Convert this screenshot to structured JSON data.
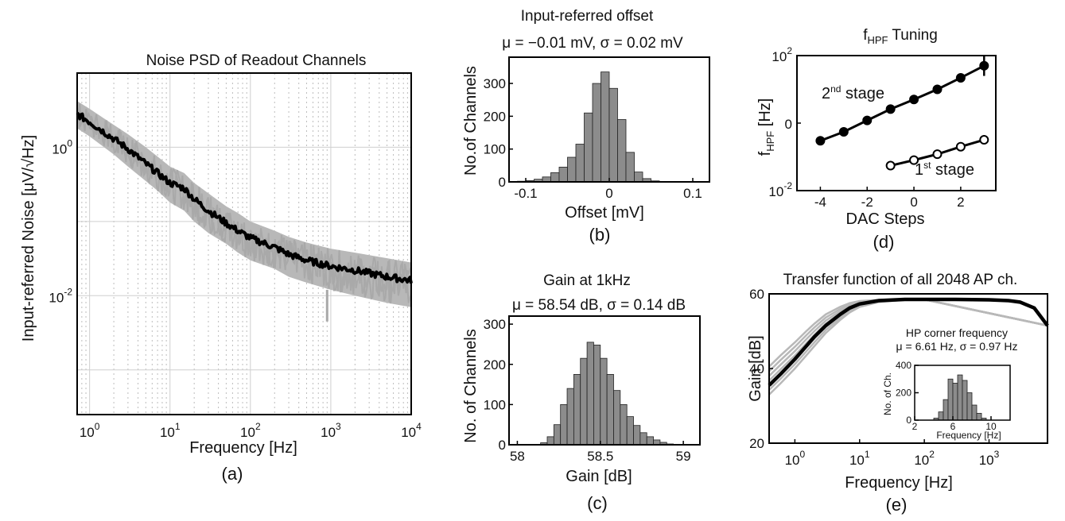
{
  "panels": {
    "a": {
      "caption": "(a)"
    },
    "b": {
      "caption": "(b)",
      "stats": "μ = −0.01 mV, σ = 0.02 mV"
    },
    "c": {
      "caption": "(c)",
      "stats": "μ = 58.54 dB, σ = 0.14 dB"
    },
    "d": {
      "caption": "(d)"
    },
    "e": {
      "caption": "(e)"
    }
  },
  "chart_data": [
    {
      "id": "a",
      "type": "line",
      "title": "Noise PSD of Readout Channels",
      "xlabel": "Frequency [Hz]",
      "ylabel": "Input-referred Noise [μV/√Hz]",
      "xscale": "log",
      "yscale": "log",
      "xlim": [
        0.7,
        10000
      ],
      "ylim": [
        0.00025,
        10
      ],
      "x_ticks": [
        {
          "v": 1,
          "b": "10",
          "e": "0"
        },
        {
          "v": 10,
          "b": "10",
          "e": "1"
        },
        {
          "v": 100,
          "b": "10",
          "e": "2"
        },
        {
          "v": 1000,
          "b": "10",
          "e": "3"
        },
        {
          "v": 10000,
          "b": "10",
          "e": "4"
        }
      ],
      "y_ticks": [
        {
          "v": 1,
          "b": "10",
          "e": "0"
        },
        {
          "v": 0.01,
          "b": "10",
          "e": "-2"
        }
      ],
      "grid": true,
      "series": [
        {
          "role": "mean",
          "color": "#000000",
          "x": [
            0.7,
            1,
            2,
            3,
            5,
            7,
            10,
            15,
            20,
            30,
            50,
            70,
            100,
            200,
            300,
            500,
            1000,
            2000,
            5000,
            10000
          ],
          "y": [
            2.8,
            2.2,
            1.3,
            0.95,
            0.6,
            0.45,
            0.33,
            0.28,
            0.2,
            0.14,
            0.095,
            0.075,
            0.06,
            0.045,
            0.036,
            0.03,
            0.025,
            0.022,
            0.018,
            0.016
          ]
        },
        {
          "role": "envelope",
          "color": "#b8b8b8",
          "x": [
            0.7,
            1,
            2,
            3,
            5,
            7,
            10,
            15,
            20,
            30,
            50,
            70,
            100,
            200,
            300,
            500,
            1000,
            2000,
            5000,
            10000
          ],
          "upper": [
            4.2,
            3.3,
            2.0,
            1.5,
            1.0,
            0.75,
            0.55,
            0.45,
            0.33,
            0.24,
            0.16,
            0.13,
            0.1,
            0.075,
            0.062,
            0.052,
            0.043,
            0.038,
            0.032,
            0.028
          ],
          "lower": [
            1.8,
            1.4,
            0.8,
            0.55,
            0.35,
            0.26,
            0.18,
            0.14,
            0.1,
            0.07,
            0.05,
            0.038,
            0.03,
            0.023,
            0.018,
            0.015,
            0.012,
            0.01,
            0.008,
            0.007
          ]
        }
      ]
    },
    {
      "id": "b",
      "type": "bar",
      "title": "Input-referred offset",
      "xlabel": "Offset [mV]",
      "ylabel": "No.of Channels",
      "xlim": [
        -0.12,
        0.12
      ],
      "ylim": [
        0,
        380
      ],
      "x_ticks": [
        -0.1,
        0,
        0.1
      ],
      "x_tick_labels": [
        "-0.1",
        "0",
        "0.1"
      ],
      "y_ticks": [
        0,
        100,
        200,
        300
      ],
      "y_tick_labels": [
        "0",
        "100",
        "200",
        "300"
      ],
      "bin_width": 0.01,
      "bin_centers": [
        -0.105,
        -0.095,
        -0.085,
        -0.075,
        -0.065,
        -0.055,
        -0.045,
        -0.035,
        -0.025,
        -0.015,
        -0.005,
        0.005,
        0.015,
        0.025,
        0.035,
        0.045,
        0.055
      ],
      "values": [
        2,
        4,
        8,
        15,
        28,
        45,
        75,
        115,
        210,
        300,
        335,
        285,
        190,
        90,
        30,
        10,
        3
      ],
      "color": "#8c8c8c"
    },
    {
      "id": "c",
      "type": "bar",
      "title": "Gain at 1kHz",
      "xlabel": "Gain [dB]",
      "ylabel": "No. of Channels",
      "xlim": [
        57.95,
        59.1
      ],
      "ylim": [
        0,
        320
      ],
      "x_ticks": [
        58,
        58.5,
        59
      ],
      "x_tick_labels": [
        "58",
        "58.5",
        "59"
      ],
      "y_ticks": [
        0,
        100,
        200,
        300
      ],
      "y_tick_labels": [
        "0",
        "100",
        "200",
        "300"
      ],
      "bin_width": 0.04,
      "bin_centers": [
        58.16,
        58.2,
        58.24,
        58.28,
        58.32,
        58.36,
        58.4,
        58.44,
        58.48,
        58.52,
        58.56,
        58.6,
        58.64,
        58.68,
        58.72,
        58.76,
        58.8,
        58.84,
        58.88,
        58.92
      ],
      "values": [
        5,
        20,
        50,
        100,
        140,
        175,
        215,
        255,
        248,
        215,
        175,
        135,
        100,
        70,
        48,
        30,
        20,
        12,
        6,
        2
      ],
      "color": "#8c8c8c"
    },
    {
      "id": "d",
      "type": "line",
      "title_main": "f",
      "title_sub": "HPF",
      "title_rest": " Tuning",
      "xlabel": "DAC Steps",
      "ylabel_main": "f",
      "ylabel_sub": "HPF",
      "ylabel_rest": "  [Hz]",
      "xlim": [
        -5,
        3.5
      ],
      "ylim": [
        0.01,
        100
      ],
      "yscale": "log",
      "x_ticks": [
        -4,
        -2,
        0,
        2
      ],
      "x_tick_labels": [
        "-4",
        "-2",
        "0",
        "2"
      ],
      "y_ticks": [
        {
          "v": 100,
          "label": "10",
          "sup": "2"
        },
        {
          "v": 1,
          "label": "0",
          "sup": ""
        },
        {
          "v": 0.01,
          "label": "10",
          "sup": "-2"
        }
      ],
      "series": [
        {
          "name": "2nd stage",
          "name_main": "2",
          "name_sup": "nd",
          "name_rest": " stage",
          "marker": "filled",
          "x": [
            -4,
            -3,
            -2,
            -1,
            0,
            1,
            2,
            3
          ],
          "y": [
            0.3,
            0.55,
            1.2,
            2.6,
            5.0,
            10,
            22,
            50
          ]
        },
        {
          "name": "1st stage",
          "name_main": "1",
          "name_sup": "st",
          "name_rest": " stage",
          "marker": "open",
          "x": [
            -1,
            0,
            1,
            2,
            3
          ],
          "y": [
            0.055,
            0.08,
            0.12,
            0.2,
            0.32
          ]
        }
      ]
    },
    {
      "id": "e",
      "type": "line",
      "title": "Transfer function of all 2048 AP ch.",
      "xlabel": "Frequency [Hz]",
      "ylabel": "Gain [dB]",
      "xscale": "log",
      "xlim": [
        0.4,
        8000
      ],
      "ylim": [
        20,
        60
      ],
      "x_ticks": [
        {
          "v": 1,
          "b": "10",
          "e": "0"
        },
        {
          "v": 10,
          "b": "10",
          "e": "1"
        },
        {
          "v": 100,
          "b": "10",
          "e": "2"
        },
        {
          "v": 1000,
          "b": "10",
          "e": "3"
        }
      ],
      "y_ticks": [
        20,
        40,
        60
      ],
      "y_tick_labels": [
        "20",
        "40",
        "60"
      ],
      "series": [
        {
          "role": "typical",
          "color": "#000000",
          "x": [
            0.4,
            0.6,
            1,
            1.5,
            2,
            3,
            5,
            7,
            10,
            20,
            50,
            100,
            300,
            1000,
            2000,
            3000,
            5000,
            8000
          ],
          "y": [
            35.5,
            38.5,
            42.5,
            46,
            48.5,
            51.5,
            54.5,
            56.2,
            57.3,
            58.2,
            58.5,
            58.5,
            58.5,
            58.4,
            58.2,
            57.8,
            56.2,
            51.5
          ]
        },
        {
          "role": "spread",
          "color": "#b8b8b8",
          "x": [
            0.4,
            0.6,
            1,
            1.5,
            2,
            3,
            5,
            7,
            10,
            20,
            50,
            100
          ],
          "upper": [
            40.5,
            43.5,
            47,
            50,
            52,
            54.5,
            56.5,
            57.5,
            58.1,
            58.4,
            58.5,
            58.5
          ],
          "lower": [
            33,
            36,
            40,
            43.5,
            46,
            49.5,
            53,
            55,
            56.5,
            57.8,
            58.4,
            58.5
          ]
        }
      ],
      "inset": {
        "type": "bar",
        "title": "HP corner frequency",
        "stats": "μ = 6.61 Hz, σ = 0.97 Hz",
        "xlabel": "Frequency [Hz]",
        "ylabel": "No. of Ch.",
        "xlim": [
          2,
          12
        ],
        "ylim": [
          0,
          400
        ],
        "x_ticks": [
          2,
          6,
          10
        ],
        "x_tick_labels": [
          "2",
          "6",
          "10"
        ],
        "y_ticks": [
          0,
          200,
          400
        ],
        "y_tick_labels": [
          "0",
          "200",
          "400"
        ],
        "bin_width": 0.5,
        "bin_centers": [
          4.25,
          4.75,
          5.25,
          5.75,
          6.25,
          6.75,
          7.25,
          7.75,
          8.25,
          8.75,
          9.25
        ],
        "values": [
          15,
          60,
          150,
          300,
          270,
          330,
          290,
          200,
          110,
          50,
          15
        ],
        "color": "#8c8c8c"
      }
    }
  ]
}
